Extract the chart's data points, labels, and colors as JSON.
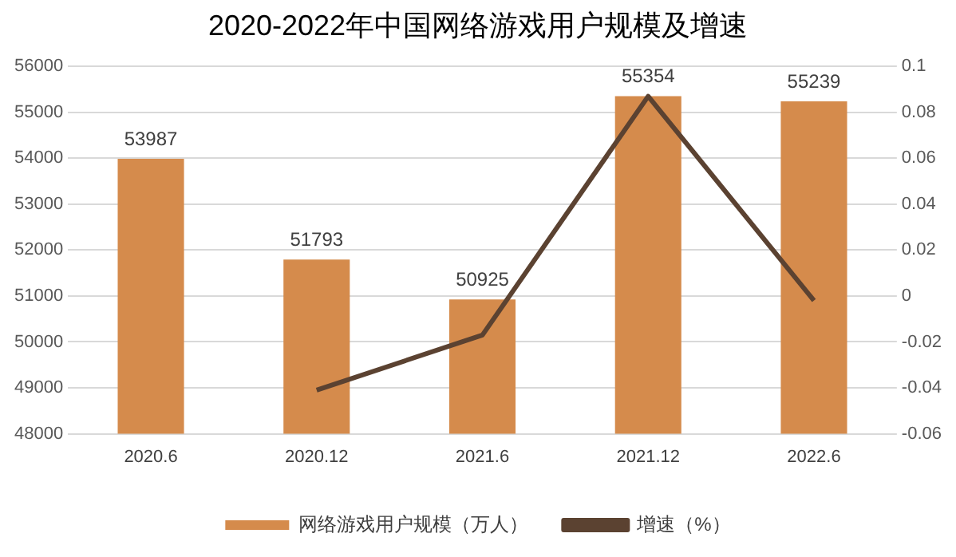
{
  "chart_data": {
    "type": "bar",
    "title": "2020-2022年中国网络游戏用户规模及增速",
    "categories": [
      "2020.6",
      "2020.12",
      "2021.6",
      "2021.12",
      "2022.6"
    ],
    "series": [
      {
        "name": "网络游戏用户规模（万人）",
        "color": "#d58b4c",
        "values": [
          53987,
          51793,
          50925,
          55354,
          55239
        ],
        "data_labels": true
      },
      {
        "name": "增速（%）",
        "type": "line",
        "axis": "y2",
        "color": "#5b4231",
        "values": [
          null,
          -0.041,
          -0.017,
          0.087,
          -0.002
        ]
      }
    ],
    "ylim": [
      48000,
      56000
    ],
    "yticks": [
      48000,
      49000,
      50000,
      51000,
      52000,
      53000,
      54000,
      55000,
      56000
    ],
    "y2lim": [
      -0.06,
      0.1
    ],
    "y2ticks": [
      -0.06,
      -0.04,
      -0.02,
      0,
      0.02,
      0.04,
      0.06,
      0.08,
      0.1
    ],
    "grid": "y",
    "legend": "bottom",
    "marker": "none"
  }
}
